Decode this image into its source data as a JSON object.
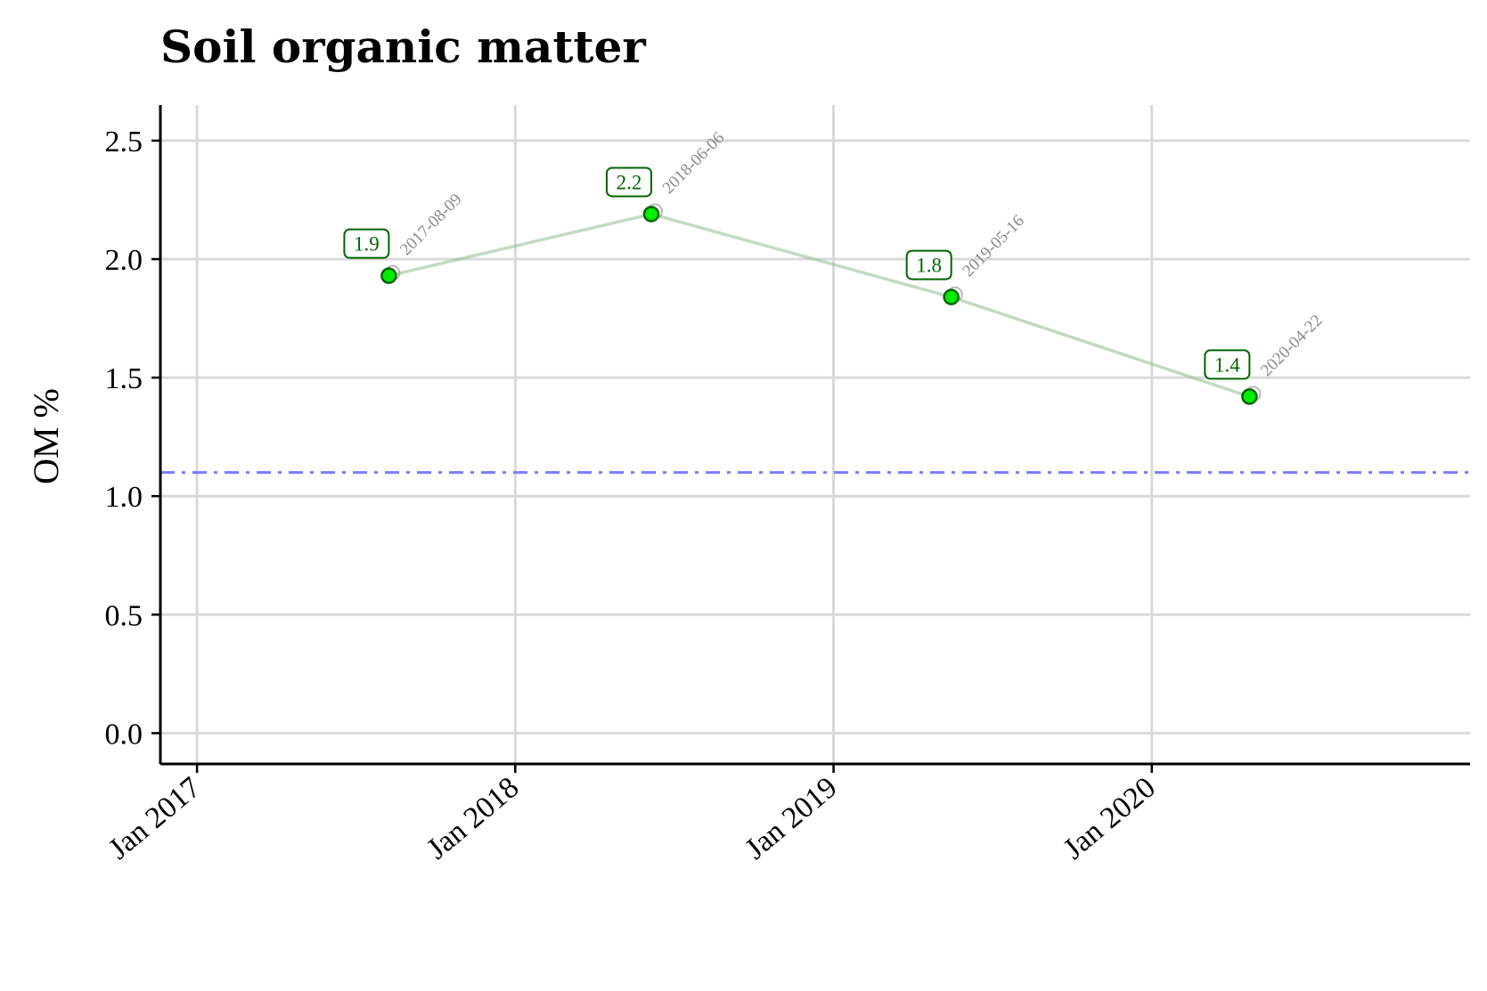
{
  "chart_data": {
    "type": "line",
    "title": "Soil organic matter",
    "xlabel": "",
    "ylabel": "OM %",
    "x_axis_type": "date",
    "xlim": [
      "2016-11-20",
      "2020-12-31"
    ],
    "ylim": [
      -0.13,
      2.65
    ],
    "yticks": [
      0.0,
      0.5,
      1.0,
      1.5,
      2.0,
      2.5
    ],
    "ytick_labels": [
      "0.0",
      "0.5",
      "1.0",
      "1.5",
      "2.0",
      "2.5"
    ],
    "xticks": [
      {
        "date": "2017-01-01",
        "label": "Jan 2017"
      },
      {
        "date": "2018-01-01",
        "label": "Jan 2018"
      },
      {
        "date": "2019-01-01",
        "label": "Jan 2019"
      },
      {
        "date": "2020-01-01",
        "label": "Jan 2020"
      }
    ],
    "grid": true,
    "reference_line": {
      "y": 1.1,
      "style": "dash-dot",
      "color": "#7b7bff"
    },
    "series": [
      {
        "color": "#00ee00",
        "points": [
          {
            "date": "2017-08-09",
            "value": 1.93,
            "label": "1.9",
            "date_label": "2017-08-09"
          },
          {
            "date": "2018-06-06",
            "value": 2.19,
            "label": "2.2",
            "date_label": "2018-06-06"
          },
          {
            "date": "2019-05-16",
            "value": 1.84,
            "label": "1.8",
            "date_label": "2019-05-16"
          },
          {
            "date": "2020-04-22",
            "value": 1.42,
            "label": "1.4",
            "date_label": "2020-04-22"
          }
        ]
      }
    ],
    "colors": {
      "line": "#8fbc8f",
      "point_fill": "#00ee00",
      "point_stroke": "#006400",
      "label_text": "#006400",
      "date_label": "#8a8a8a",
      "grid": "#d9d9d9"
    }
  }
}
